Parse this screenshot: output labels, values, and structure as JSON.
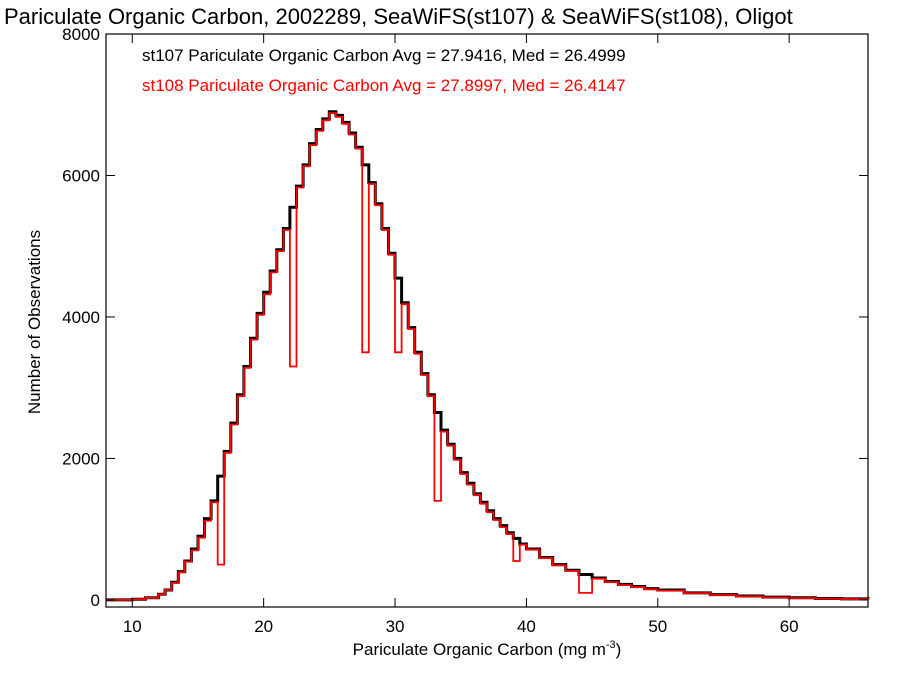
{
  "chart_data": {
    "type": "line",
    "title": "Pariculate Organic Carbon, 2002289, SeaWiFS(st107) & SeaWiFS(st108), Oligot",
    "xlabel": "Pariculate Organic Carbon (mg m",
    "xlabel_sup": "-3",
    "xlabel_close": ")",
    "ylabel": "Number of Observations",
    "xlim": [
      8,
      66
    ],
    "ylim": [
      -100,
      8000
    ],
    "x_ticks": [
      10,
      20,
      30,
      40,
      50,
      60
    ],
    "x_tick_labels": [
      "10",
      "20",
      "30",
      "40",
      "50",
      "60"
    ],
    "y_ticks": [
      0,
      2000,
      4000,
      6000,
      8000
    ],
    "y_tick_labels": [
      "0",
      "2000",
      "4000",
      "6000",
      "8000"
    ],
    "grid": false,
    "legend_position": "top-left",
    "series": [
      {
        "name": "st107 Pariculate Organic Carbon Avg = 27.9416, Med = 26.4999",
        "color": "#000000",
        "x": [
          8,
          10,
          11,
          12,
          12.5,
          13,
          13.5,
          14,
          14.5,
          15,
          15.5,
          16,
          16.5,
          17,
          17.5,
          18,
          18.5,
          19,
          19.5,
          20,
          20.5,
          21,
          21.5,
          22,
          22.5,
          23,
          23.5,
          24,
          24.5,
          25,
          25.5,
          26,
          26.5,
          27,
          27.5,
          28,
          28.5,
          29,
          29.5,
          30,
          30.5,
          31,
          31.5,
          32,
          32.5,
          33,
          33.5,
          34,
          34.5,
          35,
          35.5,
          36,
          36.5,
          37,
          37.5,
          38,
          38.5,
          39,
          39.5,
          40,
          41,
          42,
          43,
          44,
          45,
          46,
          47,
          48,
          49,
          50,
          52,
          54,
          56,
          58,
          60,
          62,
          64,
          66
        ],
        "y": [
          0,
          10,
          30,
          80,
          140,
          250,
          400,
          550,
          720,
          900,
          1150,
          1400,
          1750,
          2100,
          2500,
          2900,
          3300,
          3700,
          4050,
          4350,
          4650,
          4950,
          5250,
          5550,
          5850,
          6150,
          6450,
          6650,
          6800,
          6900,
          6850,
          6750,
          6600,
          6400,
          6150,
          5900,
          5600,
          5250,
          4900,
          4550,
          4200,
          3850,
          3500,
          3200,
          2900,
          2650,
          2400,
          2200,
          2000,
          1800,
          1650,
          1500,
          1380,
          1260,
          1150,
          1050,
          950,
          870,
          790,
          720,
          600,
          500,
          420,
          360,
          310,
          260,
          220,
          190,
          160,
          140,
          100,
          75,
          55,
          40,
          30,
          20,
          15,
          10
        ]
      },
      {
        "name": "st108 Pariculate Organic Carbon Avg = 27.8997, Med = 26.4147",
        "color": "#ff0000",
        "x": [
          8,
          10,
          11,
          12,
          12.5,
          13,
          13.5,
          14,
          14.5,
          15,
          15.5,
          16,
          16.5,
          17,
          17.5,
          18,
          18.5,
          19,
          19.5,
          20,
          20.5,
          21,
          21.5,
          22,
          22.5,
          23,
          23.5,
          24,
          24.5,
          25,
          25.5,
          26,
          26.5,
          27,
          27.5,
          28,
          28.5,
          29,
          29.5,
          30,
          30.5,
          31,
          31.5,
          32,
          32.5,
          33,
          33.5,
          34,
          34.5,
          35,
          35.5,
          36,
          36.5,
          37,
          37.5,
          38,
          38.5,
          39,
          39.5,
          40,
          41,
          42,
          43,
          44,
          45,
          46,
          47,
          48,
          49,
          50,
          52,
          54,
          56,
          58,
          60,
          62,
          64,
          66
        ],
        "y": [
          0,
          10,
          30,
          80,
          140,
          240,
          390,
          540,
          700,
          880,
          1120,
          1380,
          500,
          2080,
          2480,
          2880,
          3280,
          3680,
          4030,
          4320,
          4630,
          4930,
          5230,
          3300,
          5830,
          6130,
          6430,
          6630,
          6780,
          6880,
          6830,
          6730,
          6580,
          6380,
          3500,
          5880,
          5580,
          5230,
          4880,
          3500,
          4180,
          3830,
          3480,
          3180,
          2880,
          1400,
          2380,
          2180,
          1980,
          1780,
          1630,
          1480,
          1360,
          1240,
          1130,
          1030,
          930,
          550,
          780,
          710,
          590,
          490,
          410,
          100,
          300,
          250,
          210,
          180,
          150,
          130,
          95,
          70,
          50,
          35,
          25,
          18,
          12,
          8
        ]
      }
    ]
  }
}
